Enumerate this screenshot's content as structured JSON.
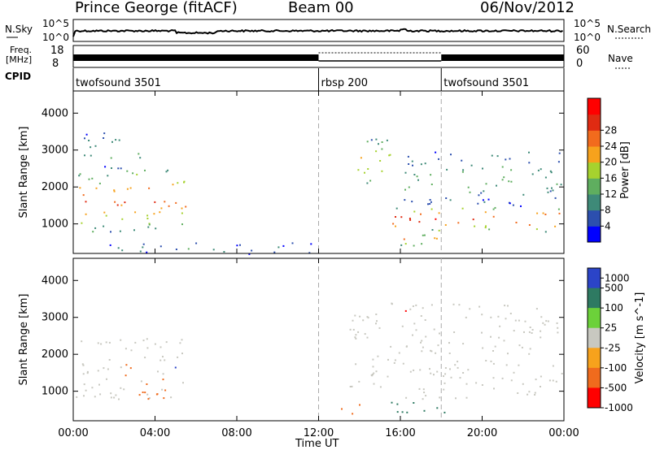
{
  "header": {
    "station": "Prince George (fitACF)",
    "beam": "Beam 00",
    "date": "06/Nov/2012"
  },
  "strip_labels": {
    "nsky": "N.Sky",
    "nsky_top": "10^5",
    "nsky_bottom": "10^0",
    "nsearch": "N.Search",
    "nsearch_top": "10^5",
    "nsearch_bottom": "10^0",
    "freq_line1": "Freq.",
    "freq_line2": "[MHz]",
    "freq_top": "18",
    "freq_bottom": "8",
    "nave": "Nave",
    "nave_top": "60",
    "nave_bottom": "0",
    "cpid": "CPID"
  },
  "cpid_segments": [
    {
      "label": "twofsound 3501",
      "start_hour": 0,
      "end_hour": 12
    },
    {
      "label": "rbsp 200",
      "start_hour": 12,
      "end_hour": 18
    },
    {
      "label": "twofsound 3501",
      "start_hour": 18,
      "end_hour": 24
    }
  ],
  "colors": {
    "power": [
      "#0000ff",
      "#2c4fae",
      "#3e8a78",
      "#5fae5f",
      "#a6d22e",
      "#f7a21c",
      "#f26b1d",
      "#e02b12",
      "#ff0000"
    ],
    "velocity": [
      "#2b44c8",
      "#2e7a62",
      "#6cd13a",
      "#c8c8c0",
      "#f7a21c",
      "#f06b1d",
      "#ff0000"
    ]
  },
  "chart_data": [
    {
      "type": "heatmap",
      "parameter": "power",
      "x_unit": "hours UT",
      "xlim": [
        0,
        24
      ],
      "ylabel": "Slant Range [km]",
      "ylim": [
        200,
        4600
      ],
      "yticks": [
        "1000",
        "2000",
        "3000",
        "4000"
      ],
      "colorbar_label": "Power [dB]",
      "colorbar_ticks": [
        "4",
        "8",
        "12",
        "16",
        "20",
        "24",
        "28"
      ],
      "scatter_regions": [
        {
          "t0": 0.0,
          "t1": 5.5,
          "r0": 800,
          "r1": 2500,
          "peak": 25
        },
        {
          "t0": 0.5,
          "t1": 3.5,
          "r0": 2500,
          "r1": 3500,
          "peak": 12
        },
        {
          "t0": 0.0,
          "t1": 12.0,
          "r0": 200,
          "r1": 500,
          "peak": 8
        },
        {
          "t0": 13.5,
          "t1": 15.5,
          "r0": 2000,
          "r1": 3400,
          "peak": 20
        },
        {
          "t0": 15.5,
          "t1": 24.0,
          "r0": 800,
          "r1": 1500,
          "peak": 28
        },
        {
          "t0": 16.0,
          "t1": 24.0,
          "r0": 1500,
          "r1": 3000,
          "peak": 12
        },
        {
          "t0": 15.0,
          "t1": 18.5,
          "r0": 400,
          "r1": 800,
          "peak": 22
        }
      ]
    },
    {
      "type": "heatmap",
      "parameter": "velocity",
      "x_unit": "hours UT",
      "xlim": [
        0,
        24
      ],
      "xlabel": "Time UT",
      "xticks": [
        "00:00",
        "04:00",
        "08:00",
        "12:00",
        "16:00",
        "20:00",
        "00:00"
      ],
      "ylabel": "Slant Range [km]",
      "ylim": [
        200,
        4600
      ],
      "yticks": [
        "1000",
        "2000",
        "3000",
        "4000"
      ],
      "colorbar_label": "Velocity [m s^-1]",
      "colorbar_ticks": [
        "1000",
        "500",
        "100",
        "25",
        "-25",
        "-100",
        "-500",
        "-1000"
      ],
      "scatter_regions": [
        {
          "t0": 0.0,
          "t1": 5.5,
          "r0": 800,
          "r1": 2500,
          "velocity": 0
        },
        {
          "t0": 2.5,
          "t1": 4.5,
          "r0": 800,
          "r1": 1800,
          "velocity": -150
        },
        {
          "t0": 13.5,
          "t1": 24.0,
          "r0": 800,
          "r1": 3400,
          "velocity": 0
        },
        {
          "t0": 15.5,
          "t1": 18.5,
          "r0": 400,
          "r1": 900,
          "velocity": 150
        },
        {
          "t0": 12.5,
          "t1": 14.0,
          "r0": 400,
          "r1": 700,
          "velocity": -150
        }
      ]
    }
  ]
}
